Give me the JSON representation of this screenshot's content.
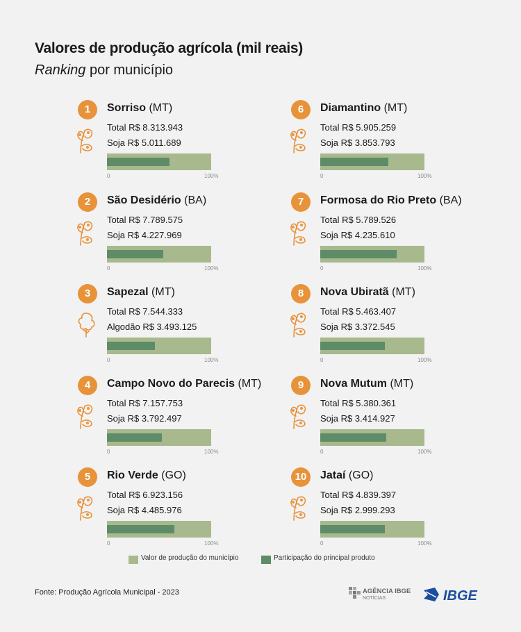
{
  "title": "Valores de produção agrícola (mil reais)",
  "subtitle_em": "Ranking",
  "subtitle_rest": " por município",
  "colors": {
    "rank": "#e8923a",
    "total": "#a8b98d",
    "share": "#5e8c68"
  },
  "chart_data": {
    "type": "bar",
    "title": "Valores de produção agrícola (mil reais)",
    "tick_min": "0",
    "tick_max": "100%",
    "items": [
      {
        "rank": "1",
        "name": "Sorriso",
        "uf": " (MT)",
        "total_label": "Total R$ 8.313.943",
        "product_label": "Soja R$ 5.011.689",
        "total": 8313943,
        "product": 5011689,
        "icon": "soy-leaf-icon"
      },
      {
        "rank": "2",
        "name": "São Desidério",
        "uf": " (BA)",
        "total_label": "Total R$ 7.789.575",
        "product_label": "Soja R$ 4.227.969",
        "total": 7789575,
        "product": 4227969,
        "icon": "soy-leaf-icon"
      },
      {
        "rank": "3",
        "name": "Sapezal",
        "uf": " (MT)",
        "total_label": "Total R$ 7.544.333",
        "product_label": "Algodão R$ 3.493.125",
        "total": 7544333,
        "product": 3493125,
        "icon": "cotton-icon"
      },
      {
        "rank": "4",
        "name": "Campo Novo do Parecis",
        "uf": " (MT)",
        "total_label": "Total R$ 7.157.753",
        "product_label": "Soja R$ 3.792.497",
        "total": 7157753,
        "product": 3792497,
        "icon": "soy-leaf-icon"
      },
      {
        "rank": "5",
        "name": "Rio Verde",
        "uf": " (GO)",
        "total_label": "Total R$ 6.923.156",
        "product_label": "Soja R$ 4.485.976",
        "total": 6923156,
        "product": 4485976,
        "icon": "soy-leaf-icon"
      },
      {
        "rank": "6",
        "name": "Diamantino",
        "uf": " (MT)",
        "total_label": "Total R$ 5.905.259",
        "product_label": "Soja R$ 3.853.793",
        "total": 5905259,
        "product": 3853793,
        "icon": "soy-leaf-icon"
      },
      {
        "rank": "7",
        "name": "Formosa do Rio Preto",
        "uf": " (BA)",
        "total_label": "Total R$ 5.789.526",
        "product_label": "Soja R$ 4.235.610",
        "total": 5789526,
        "product": 4235610,
        "icon": "soy-leaf-icon"
      },
      {
        "rank": "8",
        "name": "Nova Ubiratã",
        "uf": " (MT)",
        "total_label": "Total R$ 5.463.407",
        "product_label": "Soja R$ 3.372.545",
        "total": 5463407,
        "product": 3372545,
        "icon": "soy-leaf-icon"
      },
      {
        "rank": "9",
        "name": "Nova Mutum",
        "uf": " (MT)",
        "total_label": "Total R$ 5.380.361",
        "product_label": "Soja R$ 3.414.927",
        "total": 5380361,
        "product": 3414927,
        "icon": "soy-leaf-icon"
      },
      {
        "rank": "10",
        "name": "Jataí",
        "uf": " (GO)",
        "total_label": "Total R$ 4.839.397",
        "product_label": "Soja R$ 2.999.293",
        "total": 4839397,
        "product": 2999293,
        "icon": "soy-leaf-icon"
      }
    ],
    "legend": [
      "Valor de produção do município",
      "Participação do principal produto"
    ]
  },
  "source": "Fonte: Produção Agrícola Municipal - 2023",
  "logos": {
    "agencia_line1": "AGÊNCIA IBGE",
    "agencia_line2": "NOTÍCIAS",
    "ibge": "IBGE"
  }
}
